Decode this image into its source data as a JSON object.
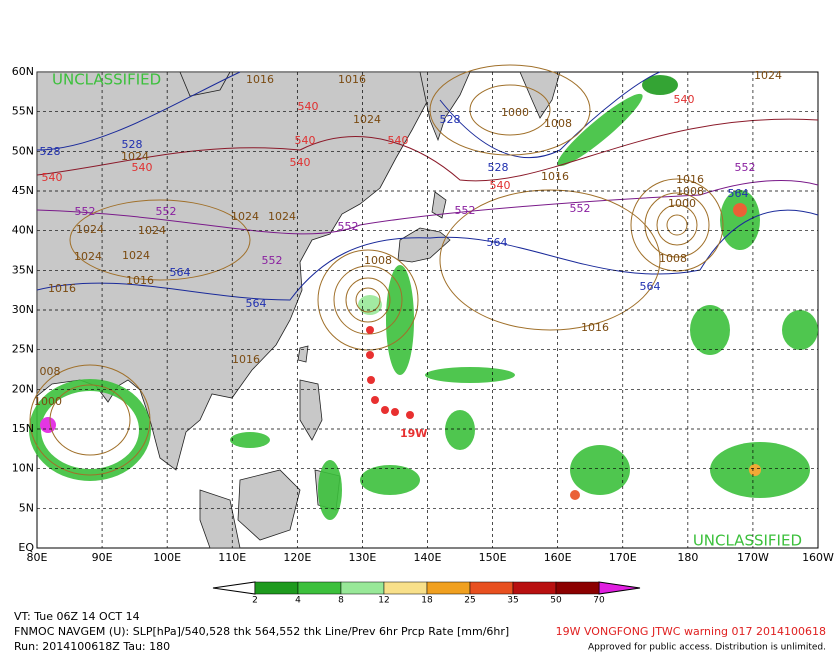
{
  "map": {
    "watermark_top": "UNCLASSIFIED",
    "watermark_bottom": "UNCLASSIFIED",
    "storm_label": "19W",
    "lat_labels": [
      "60N",
      "55N",
      "50N",
      "45N",
      "40N",
      "35N",
      "30N",
      "25N",
      "20N",
      "15N",
      "10N",
      "5N",
      "EQ"
    ],
    "lon_labels": [
      "80E",
      "90E",
      "100E",
      "110E",
      "120E",
      "130E",
      "140E",
      "150E",
      "160E",
      "170E",
      "180",
      "170W",
      "160W"
    ],
    "contour_labels": [
      "1016",
      "1016",
      "540",
      "1024",
      "540",
      "540",
      "540",
      "528",
      "528",
      "1024",
      "540",
      "540",
      "552",
      "552",
      "1024",
      "1024",
      "1024",
      "1024",
      "552",
      "1024",
      "1024",
      "564",
      "1016",
      "1016",
      "564",
      "552",
      "528",
      "1000",
      "1008",
      "540",
      "1024",
      "528",
      "540",
      "1016",
      "552",
      "552",
      "552",
      "564",
      "1016",
      "1008",
      "1000",
      "564",
      "564",
      "1008",
      "1008",
      "1016",
      "1016",
      "008",
      "1000"
    ]
  },
  "colorbar": {
    "labels": [
      2,
      4,
      8,
      12,
      18,
      25,
      35,
      50,
      70
    ],
    "colors": [
      "#1e9a1e",
      "#3cc03c",
      "#98e898",
      "#f8e08a",
      "#f0a020",
      "#e85020",
      "#b81010",
      "#8b0000"
    ]
  },
  "footer": {
    "valid_time": "VT: Tue 06Z 14 OCT 14",
    "model": "FNMOC NAVGEM (U): SLP[hPa]/540,528 thk 564,552 thk Line/Prev 6hr Prcp Rate [mm/6hr]",
    "run": "Run: 2014100618Z Tau: 180",
    "warning": "19W VONGFONG JTWC warning 017 2014100618",
    "approval": "Approved for public access. Distribution is unlimited."
  }
}
